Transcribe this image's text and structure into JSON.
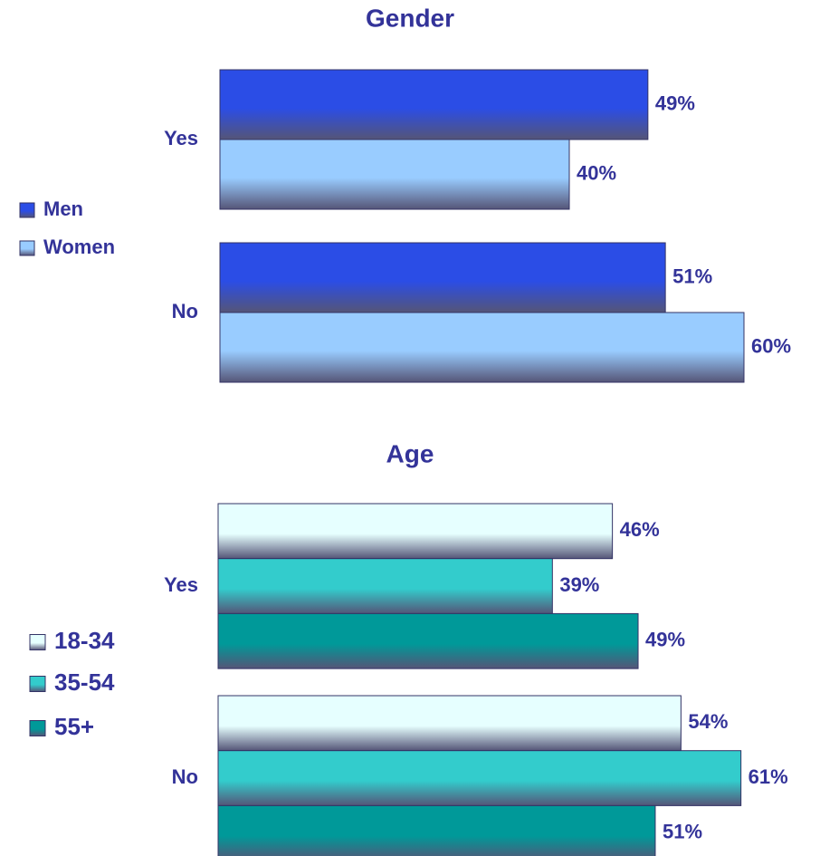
{
  "chart_data": [
    {
      "type": "bar",
      "orientation": "horizontal",
      "title": "Gender",
      "categories": [
        "Yes",
        "No"
      ],
      "series": [
        {
          "name": "Men",
          "color": "#2b4de6",
          "values": [
            49,
            51
          ],
          "value_labels": [
            "49%",
            "51%"
          ]
        },
        {
          "name": "Women",
          "color": "#99ccff",
          "values": [
            40,
            60
          ],
          "value_labels": [
            "40%",
            "60%"
          ]
        }
      ]
    },
    {
      "type": "bar",
      "orientation": "horizontal",
      "title": "Age",
      "categories": [
        "Yes",
        "No"
      ],
      "series": [
        {
          "name": "18-34",
          "color": "#e6ffff",
          "values": [
            46,
            54
          ],
          "value_labels": [
            "46%",
            "54%"
          ]
        },
        {
          "name": "35-54",
          "color": "#33cccc",
          "values": [
            39,
            61
          ],
          "value_labels": [
            "39%",
            "61%"
          ]
        },
        {
          "name": "55+",
          "color": "#009999",
          "values": [
            49,
            51
          ],
          "value_labels": [
            "49%",
            "51%"
          ]
        }
      ]
    }
  ]
}
